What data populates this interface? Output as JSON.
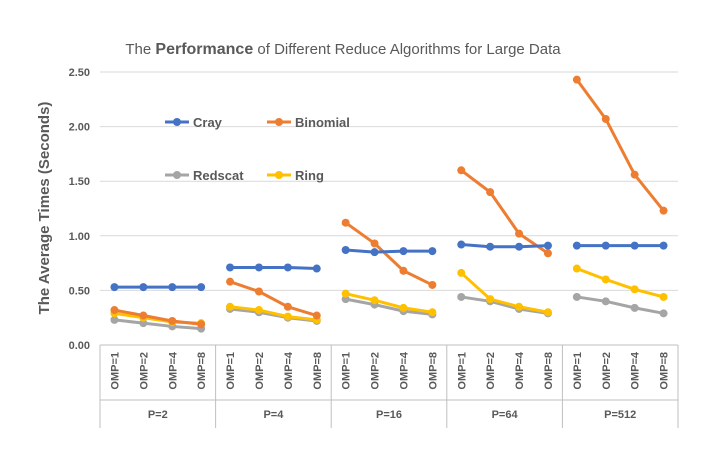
{
  "chart_data": {
    "type": "line",
    "title_prefix": "The ",
    "title_emphasis": "Performance",
    "title_suffix": " of Different Reduce Algorithms for Large Data",
    "ylabel": "The Average Times (Seconds)",
    "ylim": [
      0,
      2.5
    ],
    "yticks": [
      "0.00",
      "0.50",
      "1.00",
      "1.50",
      "2.00",
      "2.50"
    ],
    "grid": true,
    "legend_position": "inside-top-left",
    "subcategories": [
      "OMP=1",
      "OMP=2",
      "OMP=4",
      "OMP=8"
    ],
    "groups": [
      "P=2",
      "P=4",
      "P=16",
      "P=64",
      "P=512"
    ],
    "series": [
      {
        "name": "Cray",
        "color": "#4472C4",
        "values": [
          [
            0.53,
            0.53,
            0.53,
            0.53
          ],
          [
            0.71,
            0.71,
            0.71,
            0.7
          ],
          [
            0.87,
            0.85,
            0.86,
            0.86
          ],
          [
            0.92,
            0.9,
            0.9,
            0.91
          ],
          [
            0.91,
            0.91,
            0.91,
            0.91
          ]
        ]
      },
      {
        "name": "Binomial",
        "color": "#ED7D31",
        "values": [
          [
            0.32,
            0.27,
            0.22,
            0.19
          ],
          [
            0.58,
            0.49,
            0.35,
            0.27
          ],
          [
            1.12,
            0.93,
            0.68,
            0.55
          ],
          [
            1.6,
            1.4,
            1.02,
            0.84
          ],
          [
            2.43,
            2.07,
            1.56,
            1.23
          ]
        ]
      },
      {
        "name": "Redscat",
        "color": "#A5A5A5",
        "values": [
          [
            0.23,
            0.2,
            0.17,
            0.15
          ],
          [
            0.33,
            0.3,
            0.25,
            0.22
          ],
          [
            0.42,
            0.37,
            0.31,
            0.28
          ],
          [
            0.44,
            0.4,
            0.33,
            0.29
          ],
          [
            0.44,
            0.4,
            0.34,
            0.29
          ]
        ]
      },
      {
        "name": "Ring",
        "color": "#FFC000",
        "values": [
          [
            0.29,
            0.25,
            0.21,
            0.2
          ],
          [
            0.35,
            0.32,
            0.26,
            0.23
          ],
          [
            0.47,
            0.41,
            0.34,
            0.3
          ],
          [
            0.66,
            0.42,
            0.35,
            0.3
          ],
          [
            0.7,
            0.6,
            0.51,
            0.44
          ]
        ]
      }
    ]
  }
}
